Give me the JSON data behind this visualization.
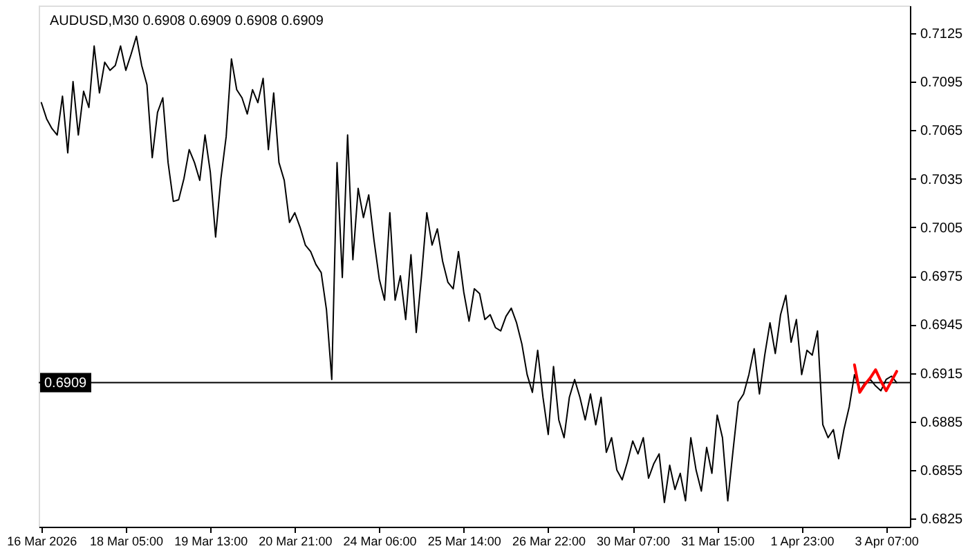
{
  "chart_data": {
    "type": "line",
    "title": "AUDUSD,M30  0.6908 0.6909 0.6908 0.6909",
    "categories": [
      "16 Mar 2026",
      null,
      null,
      null,
      null,
      null,
      null,
      null,
      null,
      null,
      null,
      null,
      null,
      null,
      null,
      null,
      "18 Mar 05:00",
      null,
      null,
      null,
      null,
      null,
      null,
      null,
      null,
      null,
      null,
      null,
      null,
      null,
      null,
      null,
      "19 Mar 13:00",
      null,
      null,
      null,
      null,
      null,
      null,
      null,
      null,
      null,
      null,
      null,
      null,
      null,
      null,
      null,
      "20 Mar 21:00",
      null,
      null,
      null,
      null,
      null,
      null,
      null,
      null,
      null,
      null,
      null,
      null,
      null,
      null,
      null,
      "24 Mar 06:00",
      null,
      null,
      null,
      null,
      null,
      null,
      null,
      null,
      null,
      null,
      null,
      null,
      null,
      null,
      null,
      "25 Mar 14:00",
      null,
      null,
      null,
      null,
      null,
      null,
      null,
      null,
      null,
      null,
      null,
      null,
      null,
      null,
      null,
      "26 Mar 22:00",
      null,
      null,
      null,
      null,
      null,
      null,
      null,
      null,
      null,
      null,
      null,
      null,
      null,
      null,
      null,
      "30 Mar 07:00",
      null,
      null,
      null,
      null,
      null,
      null,
      null,
      null,
      null,
      null,
      null,
      null,
      null,
      null,
      null,
      "31 Mar 15:00",
      null,
      null,
      null,
      null,
      null,
      null,
      null,
      null,
      null,
      null,
      null,
      null,
      null,
      null,
      null,
      "1 Apr 23:00",
      null,
      null,
      null,
      null,
      null,
      null,
      null,
      null,
      null,
      null,
      null,
      null,
      null,
      null,
      null,
      "3 Apr 07:00",
      null,
      null,
      null,
      null
    ],
    "ylim": [
      0.682,
      0.7142
    ],
    "yticks": [
      0.6825,
      0.6855,
      0.6885,
      0.6915,
      0.6945,
      0.6975,
      0.7005,
      0.7035,
      0.7065,
      0.7095,
      0.7125
    ],
    "series": [
      {
        "color": "#000000",
        "values": [
          0.7082,
          0.7072,
          0.7066,
          0.7062,
          0.7086,
          0.7051,
          0.7095,
          0.7062,
          0.7089,
          0.7079,
          0.7117,
          0.7088,
          0.7107,
          0.7102,
          0.7105,
          0.7117,
          0.7102,
          0.7112,
          0.7123,
          0.7105,
          0.7093,
          0.7048,
          0.7076,
          0.7085,
          0.7045,
          0.7021,
          0.7022,
          0.7035,
          0.7053,
          0.7045,
          0.7034,
          0.7062,
          0.7039,
          0.6999,
          0.7035,
          0.7061,
          0.7109,
          0.709,
          0.7085,
          0.7075,
          0.709,
          0.7082,
          0.7097,
          0.7053,
          0.7088,
          0.7045,
          0.7034,
          0.7008,
          0.7014,
          0.7005,
          0.6994,
          0.699,
          0.6982,
          0.6977,
          0.6954,
          0.6911,
          0.7045,
          0.6974,
          0.7062,
          0.6985,
          0.7029,
          0.7011,
          0.7025,
          0.6997,
          0.6973,
          0.696,
          0.7014,
          0.696,
          0.6975,
          0.6948,
          0.6988,
          0.694,
          0.6975,
          0.7014,
          0.6994,
          0.7004,
          0.6984,
          0.6971,
          0.6967,
          0.699,
          0.6965,
          0.6947,
          0.6967,
          0.6964,
          0.6948,
          0.6951,
          0.6943,
          0.6941,
          0.695,
          0.6955,
          0.6946,
          0.6933,
          0.6914,
          0.6903,
          0.6929,
          0.69,
          0.6877,
          0.6919,
          0.6886,
          0.6875,
          0.69,
          0.6911,
          0.69,
          0.6886,
          0.6902,
          0.6883,
          0.69,
          0.6866,
          0.6875,
          0.6855,
          0.6849,
          0.686,
          0.6873,
          0.6865,
          0.6875,
          0.685,
          0.6859,
          0.6865,
          0.6835,
          0.6858,
          0.6843,
          0.6853,
          0.6836,
          0.6875,
          0.6855,
          0.6842,
          0.6869,
          0.6853,
          0.6889,
          0.6875,
          0.6836,
          0.6867,
          0.6897,
          0.6902,
          0.6914,
          0.693,
          0.6902,
          0.6926,
          0.6946,
          0.6927,
          0.6951,
          0.6963,
          0.6934,
          0.6948,
          0.6914,
          0.6929,
          0.6926,
          0.6941,
          0.6883,
          0.6875,
          0.688,
          0.6862,
          0.688,
          0.6894,
          0.6914,
          0.6904,
          0.6909,
          0.6911,
          0.6907,
          0.6904,
          0.6911,
          0.6913,
          0.6909,
          null,
          null
        ]
      },
      {
        "color": "#ff0000",
        "values": [
          null,
          null,
          null,
          null,
          null,
          null,
          null,
          null,
          null,
          null,
          null,
          null,
          null,
          null,
          null,
          null,
          null,
          null,
          null,
          null,
          null,
          null,
          null,
          null,
          null,
          null,
          null,
          null,
          null,
          null,
          null,
          null,
          null,
          null,
          null,
          null,
          null,
          null,
          null,
          null,
          null,
          null,
          null,
          null,
          null,
          null,
          null,
          null,
          null,
          null,
          null,
          null,
          null,
          null,
          null,
          null,
          null,
          null,
          null,
          null,
          null,
          null,
          null,
          null,
          null,
          null,
          null,
          null,
          null,
          null,
          null,
          null,
          null,
          null,
          null,
          null,
          null,
          null,
          null,
          null,
          null,
          null,
          null,
          null,
          null,
          null,
          null,
          null,
          null,
          null,
          null,
          null,
          null,
          null,
          null,
          null,
          null,
          null,
          null,
          null,
          null,
          null,
          null,
          null,
          null,
          null,
          null,
          null,
          null,
          null,
          null,
          null,
          null,
          null,
          null,
          null,
          null,
          null,
          null,
          null,
          null,
          null,
          null,
          null,
          null,
          null,
          null,
          null,
          null,
          null,
          null,
          null,
          null,
          null,
          null,
          null,
          null,
          null,
          null,
          null,
          null,
          null,
          null,
          null,
          null,
          null,
          null,
          null,
          null,
          null,
          null,
          null,
          null,
          null,
          0.692,
          0.6903,
          0.6908,
          0.6912,
          0.6917,
          0.691,
          0.6904,
          0.691,
          0.6916,
          null,
          null
        ]
      }
    ],
    "ref_lines": [
      {
        "axis": "y",
        "value": 0.6909,
        "label": "0.6909",
        "color": "#000000"
      }
    ]
  }
}
